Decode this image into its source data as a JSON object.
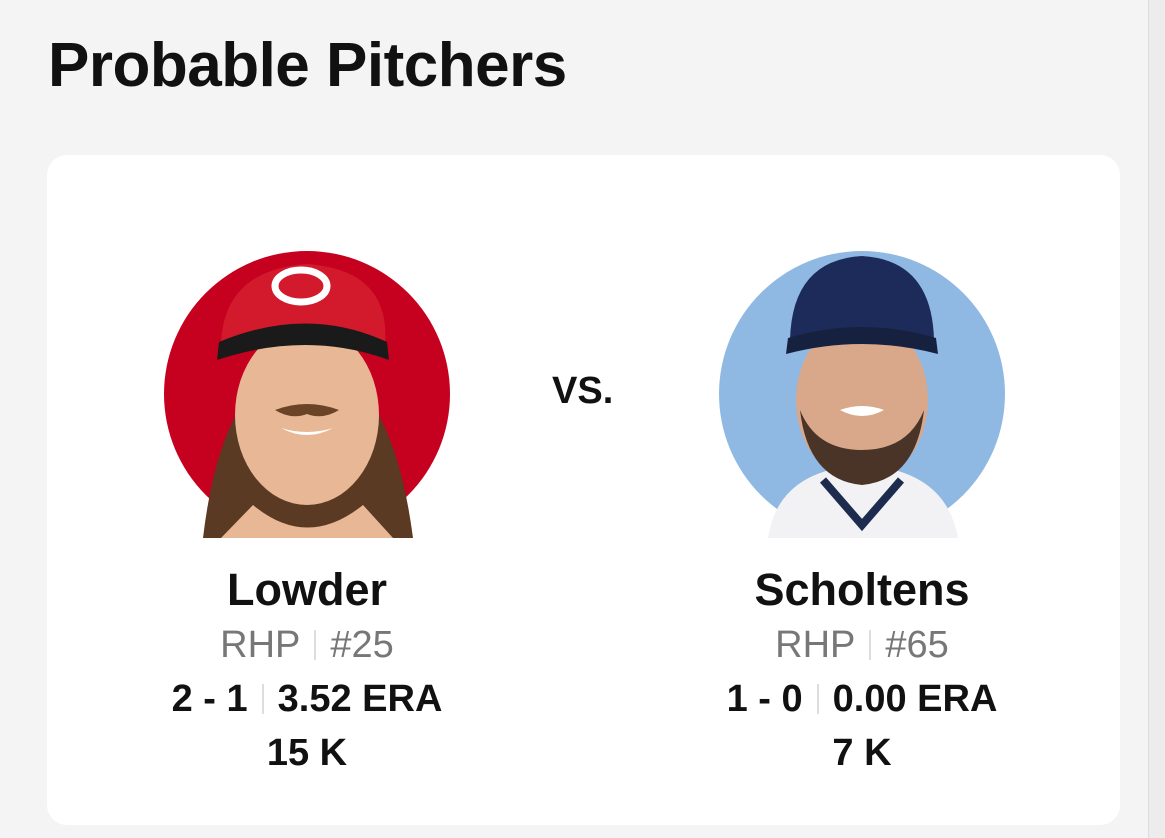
{
  "header": {
    "title": "Probable Pitchers"
  },
  "matchup": {
    "vs": "VS."
  },
  "pitchers": [
    {
      "name": "Lowder",
      "throws": "RHP",
      "number": "#25",
      "record": "2 - 1",
      "era": "3.52 ERA",
      "strikeouts": "15 K"
    },
    {
      "name": "Scholtens",
      "throws": "RHP",
      "number": "#65",
      "record": "1 - 0",
      "era": "0.00 ERA",
      "strikeouts": "7 K"
    }
  ]
}
